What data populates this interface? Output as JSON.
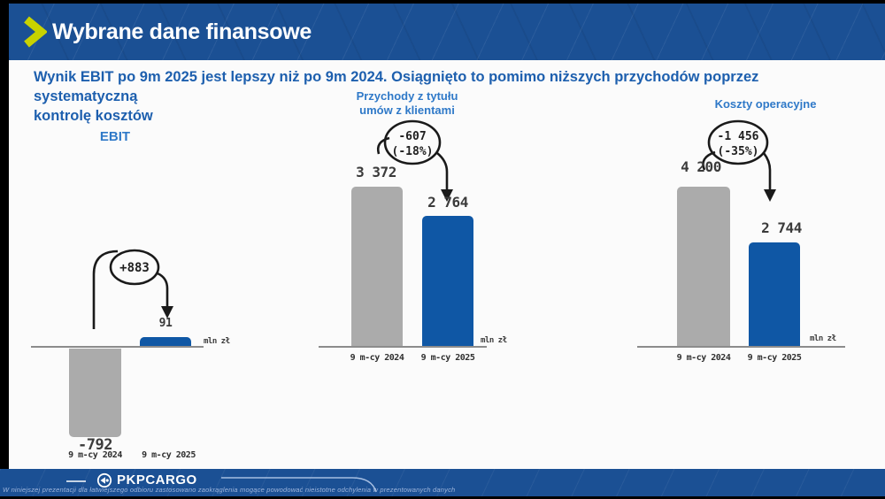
{
  "header": {
    "title": "Wybrane dane finansowe"
  },
  "subtitle": {
    "line1": "Wynik EBIT po 9m 2025 jest lepszy niż po 9m 2024. Osiągnięto to pomimo niższych przychodów poprzez systematyczną",
    "line2": "kontrolę kosztów"
  },
  "colors": {
    "header_bg": "#1b5094",
    "bar_gray": "#ababab",
    "bar_blue": "#0f57a5",
    "chevron_yellow": "#c8d200",
    "subtitle_blue": "#1d5fae",
    "chart_title_blue": "#2f79c8"
  },
  "chart_data": [
    {
      "type": "bar",
      "title": "EBIT",
      "categories": [
        "9 m-cy 2024",
        "9 m-cy 2025"
      ],
      "values": [
        -792,
        91
      ],
      "value_labels": [
        "-792",
        "91"
      ],
      "delta_label": "+883",
      "delta_pct_label": "",
      "unit": "mln zł",
      "ylim": [
        -900,
        200
      ],
      "legend_position": "none",
      "grid": false
    },
    {
      "type": "bar",
      "title": "Przychody z tytułu umów z klientami",
      "title_lines": [
        "Przychody z tytułu",
        "umów z klientami"
      ],
      "categories": [
        "9 m-cy 2024",
        "9 m-cy 2025"
      ],
      "values": [
        3372,
        2764
      ],
      "value_labels": [
        "3 372",
        "2 764"
      ],
      "delta_label": "-607",
      "delta_pct_label": "(-18%)",
      "unit": "mln zł",
      "ylim": [
        0,
        3600
      ],
      "legend_position": "none",
      "grid": false
    },
    {
      "type": "bar",
      "title": "Koszty operacyjne",
      "categories": [
        "9 m-cy 2024",
        "9 m-cy 2025"
      ],
      "values": [
        4200,
        2744
      ],
      "value_labels": [
        "4 200",
        "2 744"
      ],
      "delta_label": "-1 456",
      "delta_pct_label": "(-35%)",
      "unit": "mln zł",
      "ylim": [
        0,
        4500
      ],
      "legend_position": "none",
      "grid": false
    }
  ],
  "footer": {
    "brand": "PKPCARGO",
    "disclaimer": "W niniejszej prezentacji dla łatwiejszego odbioru zastosowano zaokrąglenia mogące powodować nieistotne odchylenia w prezentowanych danych"
  }
}
